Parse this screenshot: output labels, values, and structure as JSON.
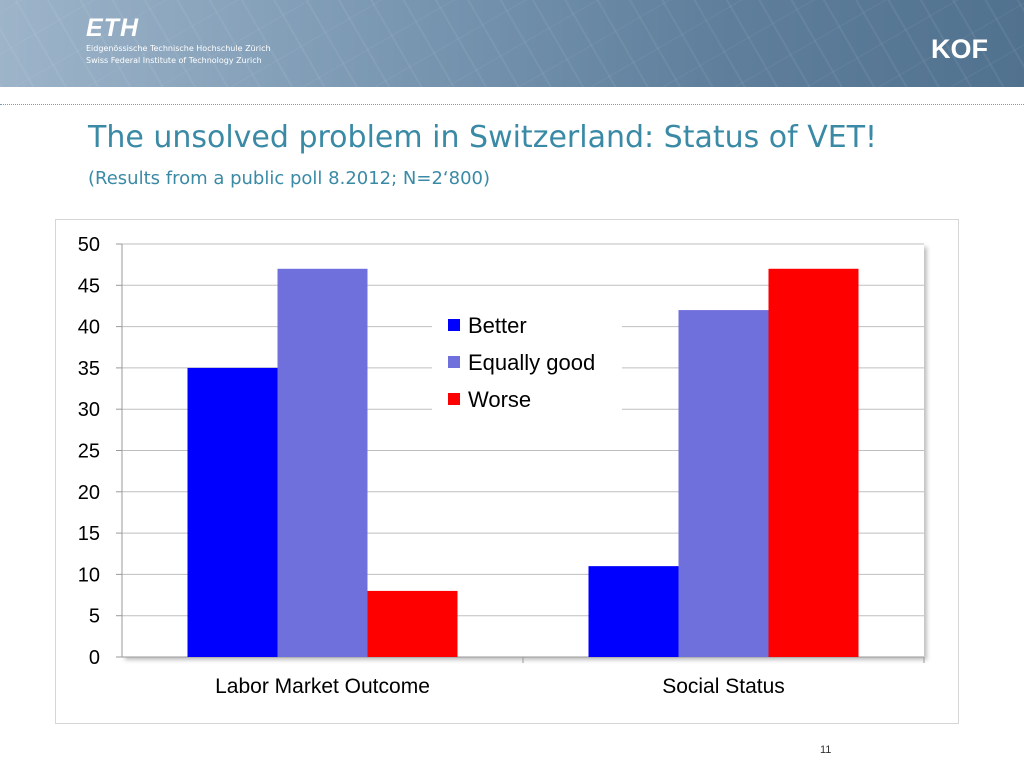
{
  "header": {
    "logo_text": "ETH",
    "institution_line1": "Eidgenössische Technische Hochschule Zürich",
    "institution_line2": "Swiss Federal Institute of Technology Zurich",
    "right_logo_text": "KOF"
  },
  "slide": {
    "title": "The unsolved problem in Switzerland: Status of VET!",
    "subtitle": "(Results from a public poll 8.2012; N=2‘800)",
    "page_number": "11"
  },
  "chart_data": {
    "type": "bar",
    "title": "",
    "xlabel": "",
    "ylabel": "",
    "categories": [
      "Labor Market Outcome",
      "Social Status"
    ],
    "series": [
      {
        "name": "Better",
        "values": [
          35,
          11
        ],
        "color": "#0000ff"
      },
      {
        "name": "Equally good",
        "values": [
          47,
          42
        ],
        "color": "#7070dd"
      },
      {
        "name": "Worse",
        "values": [
          8,
          47
        ],
        "color": "#ff0000"
      }
    ],
    "ylim": [
      0,
      50
    ],
    "yticks": [
      0,
      5,
      10,
      15,
      20,
      25,
      30,
      35,
      40,
      45,
      50
    ],
    "grid": true,
    "legend_position": "center-inside"
  }
}
